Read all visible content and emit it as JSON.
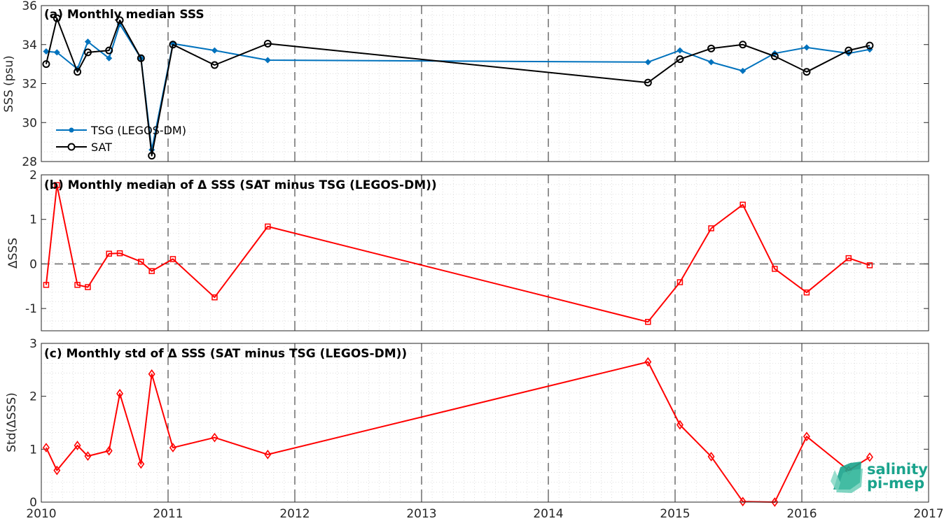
{
  "chart_data": [
    {
      "type": "line",
      "title": "(a) Monthly median SSS",
      "xlabel": "",
      "ylabel": "SSS (psu)",
      "xlim": [
        "2010-01-01",
        "2017-01-01"
      ],
      "ylim": [
        28,
        36
      ],
      "yticks": [
        28,
        30,
        32,
        34,
        36
      ],
      "grid": true,
      "legend_position": "bottom-left",
      "series": [
        {
          "name": "TSG (LEGOS-DM)",
          "color": "#0072BD",
          "marker": "dot",
          "x": [
            "2010-01-15",
            "2010-02-15",
            "2010-04-15",
            "2010-05-15",
            "2010-07-15",
            "2010-08-15",
            "2010-10-15",
            "2010-11-15",
            "2011-01-15",
            "2011-05-15",
            "2011-10-15",
            "2014-10-15",
            "2015-01-15",
            "2015-04-15",
            "2015-07-15",
            "2015-10-15",
            "2016-01-15",
            "2016-05-15",
            "2016-07-15"
          ],
          "values": [
            33.65,
            33.6,
            32.75,
            34.15,
            33.3,
            35.05,
            33.3,
            28.6,
            34.05,
            33.7,
            33.2,
            33.1,
            33.7,
            33.1,
            32.65,
            33.55,
            33.85,
            33.55,
            33.75
          ]
        },
        {
          "name": "SAT",
          "color": "#000000",
          "marker": "circle",
          "x": [
            "2010-01-15",
            "2010-02-15",
            "2010-04-15",
            "2010-05-15",
            "2010-07-15",
            "2010-08-15",
            "2010-10-15",
            "2010-11-15",
            "2011-01-15",
            "2011-05-15",
            "2011-10-15",
            "2014-10-15",
            "2015-01-15",
            "2015-04-15",
            "2015-07-15",
            "2015-10-15",
            "2016-01-15",
            "2016-05-15",
            "2016-07-15"
          ],
          "values": [
            33.0,
            35.35,
            32.6,
            33.6,
            33.7,
            35.25,
            33.3,
            28.3,
            34.0,
            32.95,
            34.05,
            32.05,
            33.25,
            33.8,
            34.0,
            33.4,
            32.6,
            33.7,
            33.95
          ]
        }
      ]
    },
    {
      "type": "line",
      "title": "(b) Monthly median of Δ SSS (SAT minus TSG (LEGOS-DM))",
      "xlabel": "",
      "ylabel": "ΔSSS",
      "xlim": [
        "2010-01-01",
        "2017-01-01"
      ],
      "ylim": [
        -1.5,
        2
      ],
      "yticks": [
        -1,
        0,
        1,
        2
      ],
      "grid": true,
      "reference_line": 0,
      "series": [
        {
          "name": "",
          "color": "#ff0000",
          "marker": "square",
          "x": [
            "2010-01-15",
            "2010-02-15",
            "2010-04-15",
            "2010-05-15",
            "2010-07-15",
            "2010-08-15",
            "2010-10-15",
            "2010-11-15",
            "2011-01-15",
            "2011-05-15",
            "2011-10-15",
            "2014-10-15",
            "2015-01-15",
            "2015-04-15",
            "2015-07-15",
            "2015-10-15",
            "2016-01-15",
            "2016-05-15",
            "2016-07-15"
          ],
          "values": [
            -0.47,
            1.77,
            -0.47,
            -0.52,
            0.23,
            0.24,
            0.05,
            -0.16,
            0.11,
            -0.75,
            0.84,
            -1.3,
            -0.41,
            0.8,
            1.33,
            -0.11,
            -0.64,
            0.13,
            -0.03
          ]
        }
      ]
    },
    {
      "type": "line",
      "title": "(c) Monthly std of Δ SSS (SAT minus TSG (LEGOS-DM))",
      "xlabel": "",
      "ylabel": "Std(ΔSSS)",
      "xlim": [
        "2010-01-01",
        "2017-01-01"
      ],
      "xticks": [
        "2010",
        "2011",
        "2012",
        "2013",
        "2014",
        "2015",
        "2016",
        "2017"
      ],
      "ylim": [
        0,
        3
      ],
      "yticks": [
        0,
        1,
        2,
        3
      ],
      "grid": true,
      "series": [
        {
          "name": "",
          "color": "#ff0000",
          "marker": "diamond",
          "x": [
            "2010-01-15",
            "2010-02-15",
            "2010-04-15",
            "2010-05-15",
            "2010-07-15",
            "2010-08-15",
            "2010-10-15",
            "2010-11-15",
            "2011-01-15",
            "2011-05-15",
            "2011-10-15",
            "2014-10-15",
            "2015-01-15",
            "2015-04-15",
            "2015-07-15",
            "2015-10-15",
            "2016-01-15",
            "2016-05-15",
            "2016-07-15"
          ],
          "values": [
            1.03,
            0.6,
            1.07,
            0.87,
            0.97,
            2.05,
            0.72,
            2.42,
            1.03,
            1.22,
            0.9,
            2.65,
            1.46,
            0.86,
            0.01,
            0.0,
            1.24,
            0.6,
            0.85
          ]
        }
      ]
    }
  ],
  "logo": {
    "line1": "salinity",
    "line2": "pi-mep",
    "color": "#1aa38c"
  }
}
